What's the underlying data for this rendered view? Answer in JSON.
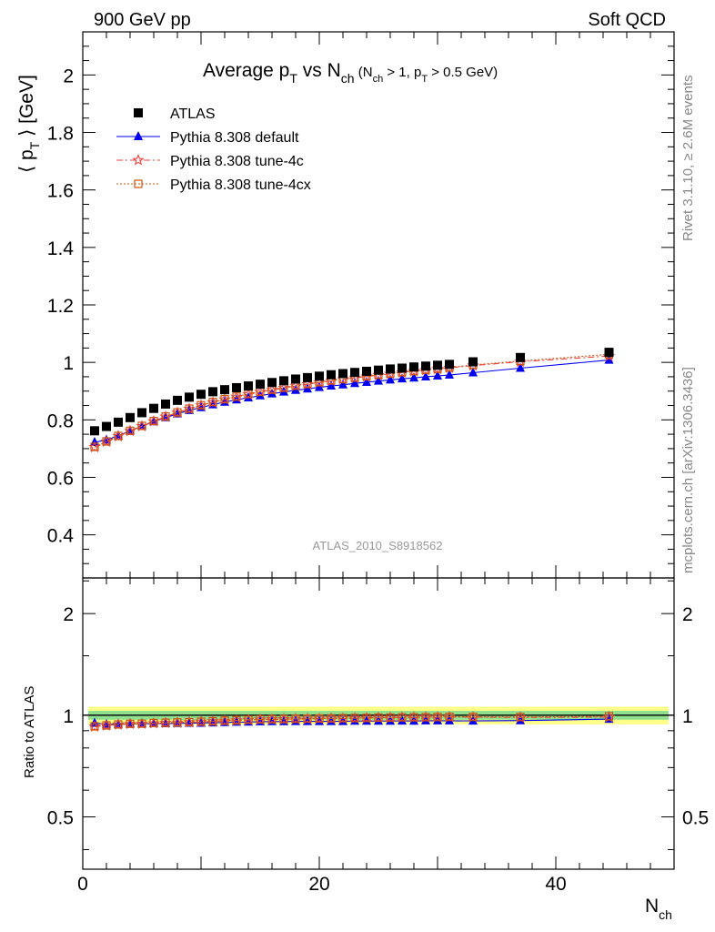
{
  "header": {
    "left": "900 GeV pp",
    "right": "Soft QCD"
  },
  "side_labels": {
    "rivet": "Rivet 3.1.10, ≥ 2.6M events",
    "mcplots": "mcplots.cern.ch [arXiv:1306.3436]"
  },
  "watermark": "ATLAS_2010_S8918562",
  "colors": {
    "atlas": "#000000",
    "default": "#0000ee",
    "tune4c": "#ee4444",
    "tune4cx": "#cc5511",
    "band_inner": "#8ee08e",
    "band_outer": "#ffff88"
  },
  "chart_data": [
    {
      "type": "scatter",
      "title": "Average pT vs Nch (Nch > 1, pT > 0.5 GeV)",
      "title_parts": {
        "main": "Average p",
        "sub1": "T",
        "mid": " vs N",
        "sub2": "ch",
        "small_a": " (N",
        "small_sub_a": "ch",
        "small_b": " > 1, p",
        "small_sub_b": "T",
        "small_c": " > 0.5 GeV)"
      },
      "ylabel_parts": {
        "open": "⟨ p",
        "sub": "T",
        "close": " ⟩  [GeV]"
      },
      "xlim": [
        0,
        50
      ],
      "ylim": [
        0.25,
        2.15
      ],
      "yticks": [
        0.4,
        0.6,
        0.8,
        1,
        1.2,
        1.4,
        1.6,
        1.8,
        2
      ],
      "ytick_labels": [
        "0.4",
        "0.6",
        "0.8",
        "1",
        "1.2",
        "1.4",
        "1.6",
        "1.8",
        "2"
      ],
      "x": [
        1,
        2,
        3,
        4,
        5,
        6,
        7,
        8,
        9,
        10,
        11,
        12,
        13,
        14,
        15,
        16,
        17,
        18,
        19,
        20,
        21,
        22,
        23,
        24,
        25,
        26,
        27,
        28,
        29,
        30,
        31,
        33,
        37,
        44.5
      ],
      "series": [
        {
          "name": "ATLAS",
          "marker": "square",
          "values": [
            0.762,
            0.777,
            0.792,
            0.808,
            0.825,
            0.84,
            0.855,
            0.868,
            0.879,
            0.889,
            0.898,
            0.905,
            0.912,
            0.918,
            0.924,
            0.93,
            0.936,
            0.942,
            0.947,
            0.952,
            0.957,
            0.961,
            0.965,
            0.969,
            0.973,
            0.977,
            0.98,
            0.984,
            0.987,
            0.99,
            0.993,
            1.002,
            1.017,
            1.035
          ]
        },
        {
          "name": "Pythia 8.308 default",
          "marker": "triangle",
          "values": [
            0.722,
            0.73,
            0.745,
            0.762,
            0.778,
            0.794,
            0.808,
            0.821,
            0.833,
            0.843,
            0.853,
            0.862,
            0.87,
            0.877,
            0.884,
            0.891,
            0.897,
            0.903,
            0.908,
            0.913,
            0.918,
            0.922,
            0.927,
            0.931,
            0.935,
            0.939,
            0.943,
            0.946,
            0.95,
            0.953,
            0.956,
            0.964,
            0.98,
            1.008
          ]
        },
        {
          "name": "Pythia 8.308 tune-4c",
          "marker": "star",
          "values": [
            0.705,
            0.724,
            0.743,
            0.761,
            0.778,
            0.795,
            0.811,
            0.825,
            0.838,
            0.85,
            0.861,
            0.871,
            0.88,
            0.889,
            0.897,
            0.904,
            0.911,
            0.918,
            0.924,
            0.93,
            0.936,
            0.941,
            0.946,
            0.951,
            0.956,
            0.96,
            0.965,
            0.969,
            0.973,
            0.977,
            0.981,
            0.989,
            1.002,
            1.022
          ]
        },
        {
          "name": "Pythia 8.308 tune-4cx",
          "marker": "open-square",
          "values": [
            0.706,
            0.725,
            0.744,
            0.762,
            0.779,
            0.796,
            0.812,
            0.826,
            0.839,
            0.851,
            0.862,
            0.872,
            0.881,
            0.89,
            0.898,
            0.905,
            0.912,
            0.919,
            0.925,
            0.931,
            0.937,
            0.942,
            0.947,
            0.952,
            0.957,
            0.961,
            0.966,
            0.97,
            0.974,
            0.978,
            0.982,
            0.991,
            1.005,
            1.028
          ]
        }
      ]
    },
    {
      "type": "scatter",
      "ylabel": "Ratio to ATLAS",
      "xlabel_parts": {
        "main": "N",
        "sub": "ch"
      },
      "xlim": [
        0,
        50
      ],
      "ylim": [
        0.35,
        2.55
      ],
      "log_y": true,
      "xticks": [
        0,
        20,
        40
      ],
      "xtick_labels": [
        "0",
        "20",
        "40"
      ],
      "yticks": [
        0.5,
        1,
        2
      ],
      "ytick_labels": [
        "0.5",
        "1",
        "2"
      ],
      "x": [
        1,
        2,
        3,
        4,
        5,
        6,
        7,
        8,
        9,
        10,
        11,
        12,
        13,
        14,
        15,
        16,
        17,
        18,
        19,
        20,
        21,
        22,
        23,
        24,
        25,
        26,
        27,
        28,
        29,
        30,
        31,
        33,
        37,
        44.5
      ],
      "band_inner_halfwidth": 0.03,
      "band_outer_halfwidth": 0.06,
      "series": [
        {
          "name": "Pythia 8.308 default",
          "values": [
            0.948,
            0.94,
            0.941,
            0.943,
            0.943,
            0.945,
            0.945,
            0.946,
            0.948,
            0.948,
            0.95,
            0.952,
            0.954,
            0.955,
            0.957,
            0.958,
            0.958,
            0.959,
            0.959,
            0.959,
            0.959,
            0.959,
            0.961,
            0.961,
            0.961,
            0.961,
            0.962,
            0.961,
            0.963,
            0.963,
            0.963,
            0.962,
            0.964,
            0.974
          ]
        },
        {
          "name": "Pythia 8.308 tune-4c",
          "values": [
            0.925,
            0.932,
            0.938,
            0.942,
            0.943,
            0.946,
            0.949,
            0.95,
            0.953,
            0.956,
            0.959,
            0.962,
            0.965,
            0.968,
            0.971,
            0.972,
            0.973,
            0.975,
            0.976,
            0.977,
            0.978,
            0.979,
            0.98,
            0.981,
            0.983,
            0.983,
            0.985,
            0.985,
            0.986,
            0.987,
            0.988,
            0.987,
            0.985,
            0.987
          ]
        },
        {
          "name": "Pythia 8.308 tune-4cx",
          "values": [
            0.927,
            0.933,
            0.939,
            0.943,
            0.944,
            0.948,
            0.95,
            0.952,
            0.954,
            0.957,
            0.96,
            0.964,
            0.966,
            0.97,
            0.972,
            0.973,
            0.974,
            0.976,
            0.977,
            0.978,
            0.979,
            0.98,
            0.981,
            0.982,
            0.984,
            0.984,
            0.986,
            0.986,
            0.987,
            0.988,
            0.989,
            0.989,
            0.988,
            0.993
          ]
        }
      ]
    }
  ]
}
